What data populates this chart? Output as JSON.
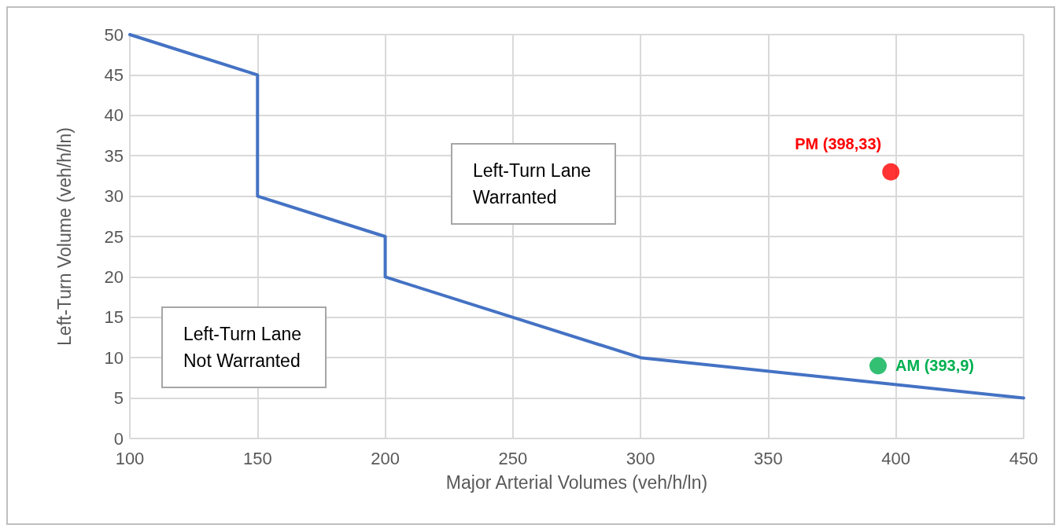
{
  "chart_data": {
    "type": "line",
    "xlabel": "Major Arterial Volumes (veh/h/ln)",
    "ylabel": "Left-Turn Volume (veh/h/ln)",
    "series": [
      {
        "color": "#4472c4",
        "x": [
          100,
          150,
          150,
          200,
          200,
          300,
          450
        ],
        "values": [
          50,
          45,
          30,
          25,
          20,
          10,
          5
        ],
        "marker": "none"
      },
      {
        "type": "scatter",
        "color": "#ff0000",
        "x": [
          398
        ],
        "values": [
          33
        ],
        "marker": "circle"
      },
      {
        "type": "scatter",
        "color": "#00b050",
        "x": [
          393
        ],
        "values": [
          9
        ],
        "marker": "circle"
      }
    ],
    "annotations": [
      "Left-Turn Lane\nWarranted",
      "Left-Turn Lane\nNot Warranted",
      {
        "text": "PM (398,33)",
        "x": 398,
        "y": 33
      },
      {
        "text": "AM (393,9)",
        "x": 393,
        "y": 9
      }
    ],
    "xlim": [
      100,
      450
    ],
    "xticks": [
      100,
      150,
      200,
      250,
      300,
      350,
      400,
      450
    ],
    "ylim": [
      0,
      50
    ],
    "yticks": [
      0,
      5,
      10,
      15,
      20,
      25,
      30,
      35,
      40,
      45,
      50
    ],
    "grid": true
  }
}
